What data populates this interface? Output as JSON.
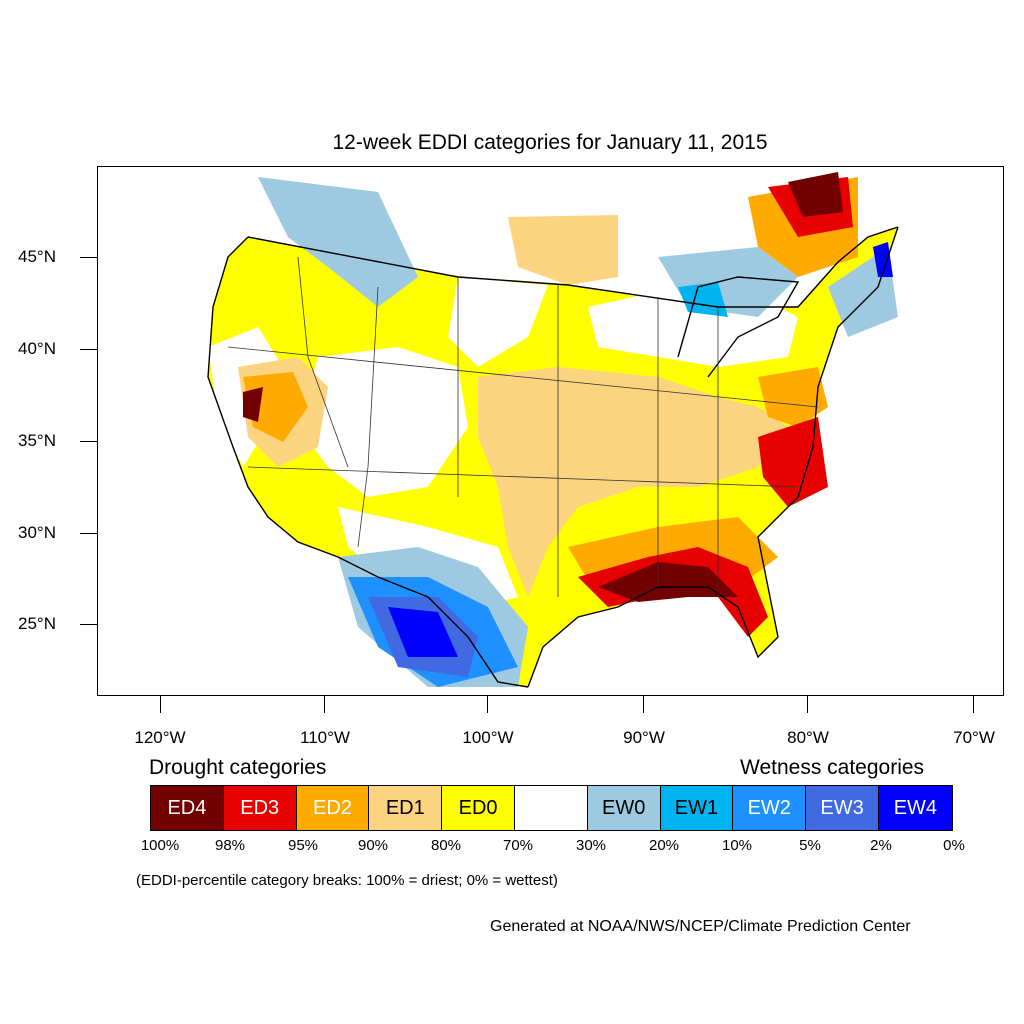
{
  "title": "12-week EDDI categories for January 11, 2015",
  "lat_labels": [
    "45°N",
    "40°N",
    "35°N",
    "30°N",
    "25°N"
  ],
  "lon_labels": [
    "120°W",
    "110°W",
    "100°W",
    "90°W",
    "80°W",
    "70°W"
  ],
  "legend": {
    "drought_heading": "Drought categories",
    "wetness_heading": "Wetness categories",
    "categories": [
      {
        "label": "ED4",
        "color": "#730000"
      },
      {
        "label": "ED3",
        "color": "#e60000"
      },
      {
        "label": "ED2",
        "color": "#ffaa00"
      },
      {
        "label": "ED1",
        "color": "#fcd37f"
      },
      {
        "label": "ED0",
        "color": "#ffff00"
      },
      {
        "label": "",
        "color": "#ffffff"
      },
      {
        "label": "EW0",
        "color": "#9ecae1"
      },
      {
        "label": "EW1",
        "color": "#00b4f0"
      },
      {
        "label": "EW2",
        "color": "#1e90ff"
      },
      {
        "label": "EW3",
        "color": "#4169e1"
      },
      {
        "label": "EW4",
        "color": "#0000ff"
      }
    ],
    "percent_breaks": [
      "100%",
      "98%",
      "95%",
      "90%",
      "80%",
      "70%",
      "30%",
      "20%",
      "10%",
      "5%",
      "2%",
      "0%"
    ]
  },
  "note": "(EDDI-percentile category breaks: 100% = driest; 0% = wettest)",
  "credit": "Generated at NOAA/NWS/NCEP/Climate Prediction Center"
}
